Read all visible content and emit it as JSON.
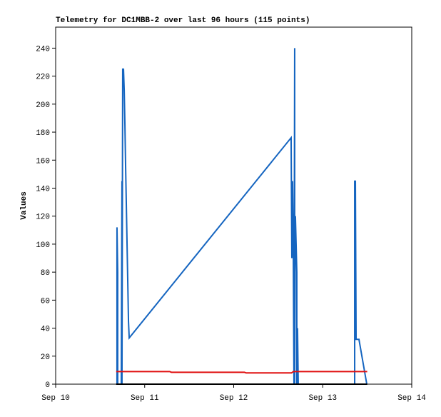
{
  "chart_data": {
    "type": "line",
    "title": "Telemetry for DC1MBB-2 over last 96 hours (115 points)",
    "y_label": "Values",
    "xlim": [
      10,
      14
    ],
    "ylim": [
      0,
      255
    ],
    "xticks": [
      {
        "value": 10,
        "label": "Sep 10"
      },
      {
        "value": 11,
        "label": "Sep 11"
      },
      {
        "value": 12,
        "label": "Sep 12"
      },
      {
        "value": 13,
        "label": "Sep 13"
      },
      {
        "value": 14,
        "label": "Sep 14"
      }
    ],
    "yticks": [
      0,
      20,
      40,
      60,
      80,
      100,
      120,
      140,
      160,
      180,
      200,
      220,
      240
    ],
    "series": [
      {
        "color": "#1565c0",
        "x": [
          10.689,
          10.689,
          10.697,
          10.697,
          10.737,
          10.745,
          10.745,
          10.753,
          10.762,
          10.77,
          10.778,
          10.786,
          10.794,
          10.802,
          10.81,
          10.818,
          10.826,
          12.645,
          12.653,
          12.661,
          12.669,
          12.677,
          12.685,
          12.685,
          12.693,
          12.709,
          12.709,
          12.717,
          12.725,
          13.359,
          13.359,
          13.367,
          13.375,
          13.407,
          13.495
        ],
        "values": [
          0,
          112,
          80,
          0,
          0,
          145,
          0,
          225,
          225,
          210,
          185,
          155,
          128,
          100,
          73,
          45,
          33,
          176,
          90,
          145,
          97,
          0,
          240,
          0,
          120,
          80,
          0,
          40,
          0,
          0,
          145,
          145,
          32,
          32,
          0
        ]
      },
      {
        "color": "#e01010",
        "x": [
          10.68,
          11.28,
          11.3,
          12.12,
          12.14,
          12.65,
          12.67,
          13.5
        ],
        "values": [
          9,
          9,
          8.5,
          8.5,
          8,
          8,
          9,
          9
        ]
      },
      {
        "color": "#000000",
        "x": [
          10.68,
          13.5
        ],
        "values": [
          0,
          0
        ]
      }
    ]
  }
}
